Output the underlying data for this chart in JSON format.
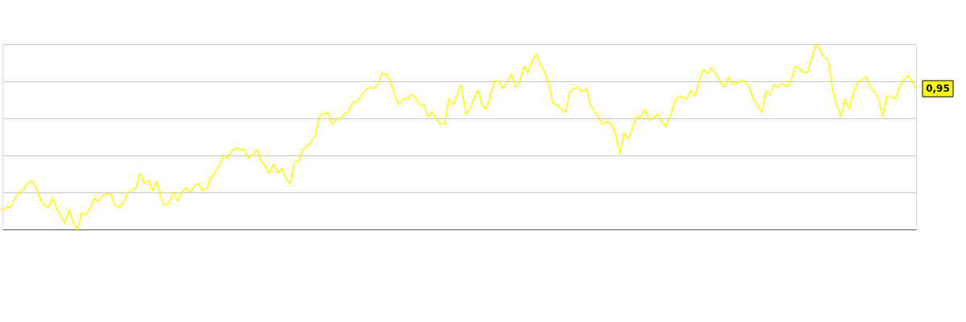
{
  "chart_data": {
    "type": "line",
    "ylim": [
      0,
      1.25
    ],
    "yticks": [
      {
        "value": 0,
        "label": null
      },
      {
        "value": 0.25,
        "label": null
      },
      {
        "value": 0.5,
        "label": null
      },
      {
        "value": 0.75,
        "label": null
      },
      {
        "value": 1,
        "label": null
      },
      {
        "value": 1.25,
        "label": null
      }
    ],
    "grid": "y",
    "tick_labels": false,
    "line_style": "solid",
    "marker": "none",
    "categories": [
      null,
      null,
      null,
      null,
      null,
      null,
      null,
      null,
      null,
      null,
      null,
      null,
      null,
      null,
      null,
      null,
      null,
      null,
      null,
      null,
      null,
      null,
      null,
      null,
      null,
      null,
      null,
      null,
      null,
      null,
      null,
      null,
      null,
      null,
      null,
      null,
      null,
      null,
      null,
      null,
      null,
      null,
      null,
      null,
      null,
      null,
      null,
      null,
      null,
      null,
      null,
      null,
      null,
      null,
      null,
      null,
      null,
      null,
      null,
      null,
      null,
      null,
      null,
      null,
      null,
      null,
      null,
      null,
      null,
      null,
      null,
      null,
      null,
      null,
      null,
      null,
      null,
      null,
      null,
      null,
      null,
      null,
      null,
      null,
      null,
      null,
      null,
      null,
      null,
      null,
      null,
      null,
      null,
      null,
      null,
      null,
      null,
      null,
      null,
      null,
      null,
      null,
      null,
      null,
      null,
      null,
      null,
      null,
      null,
      null,
      null,
      null,
      null,
      null,
      null,
      null,
      null,
      null,
      null,
      null,
      null,
      null,
      null,
      null,
      null,
      null,
      null,
      null,
      null,
      null,
      null,
      null,
      null,
      null,
      null,
      null,
      null,
      null,
      null,
      null,
      null,
      null,
      null,
      null,
      null,
      null,
      null,
      null,
      null,
      null,
      null,
      null,
      null,
      null,
      null,
      null,
      null,
      null,
      null,
      null,
      null,
      null,
      null,
      null,
      null,
      null,
      null,
      null,
      null,
      null,
      null,
      null,
      null,
      null,
      null,
      null,
      null,
      null,
      null,
      null,
      null,
      null,
      null,
      null,
      null,
      null,
      null,
      null,
      null,
      null,
      null,
      null,
      null,
      null,
      null,
      null,
      null,
      null,
      null,
      null,
      null,
      null,
      null,
      null,
      null,
      null,
      null,
      null,
      null,
      null,
      null,
      null,
      null,
      null,
      null,
      null,
      null,
      null,
      null,
      null
    ],
    "series": [
      {
        "color": "#ffff00",
        "values": [
          0.13,
          0.15,
          0.15,
          0.21,
          0.25,
          0.26,
          0.31,
          0.33,
          0.29,
          0.21,
          0.16,
          0.15,
          0.21,
          0.14,
          0.09,
          0.04,
          0.13,
          0.05,
          0,
          0.11,
          0.1,
          0.14,
          0.21,
          0.19,
          0.23,
          0.24,
          0.24,
          0.16,
          0.15,
          0.18,
          0.25,
          0.26,
          0.28,
          0.38,
          0.31,
          0.33,
          0.26,
          0.33,
          0.21,
          0.16,
          0.18,
          0.25,
          0.19,
          0.25,
          0.28,
          0.25,
          0.29,
          0.31,
          0.26,
          0.28,
          0.35,
          0.38,
          0.43,
          0.5,
          0.48,
          0.53,
          0.55,
          0.54,
          0.54,
          0.48,
          0.5,
          0.54,
          0.46,
          0.43,
          0.38,
          0.44,
          0.38,
          0.41,
          0.34,
          0.31,
          0.46,
          0.46,
          0.54,
          0.56,
          0.59,
          0.64,
          0.76,
          0.78,
          0.79,
          0.71,
          0.74,
          0.75,
          0.78,
          0.8,
          0.86,
          0.86,
          0.9,
          0.94,
          0.96,
          0.95,
          0.98,
          1.05,
          1.05,
          1.0,
          0.91,
          0.84,
          0.88,
          0.88,
          0.91,
          0.89,
          0.84,
          0.84,
          0.76,
          0.79,
          0.75,
          0.71,
          0.71,
          0.88,
          0.84,
          0.91,
          0.98,
          0.78,
          0.81,
          0.88,
          0.94,
          0.84,
          0.81,
          0.91,
          1.0,
          1.0,
          0.95,
          1.0,
          1.05,
          0.96,
          1.0,
          1.1,
          1.06,
          1.14,
          1.18,
          1.11,
          1.06,
          0.98,
          0.85,
          0.84,
          0.81,
          0.79,
          0.93,
          0.95,
          0.96,
          0.93,
          0.95,
          0.84,
          0.79,
          0.75,
          0.71,
          0.73,
          0.71,
          0.64,
          0.51,
          0.65,
          0.61,
          0.69,
          0.76,
          0.76,
          0.81,
          0.74,
          0.75,
          0.78,
          0.73,
          0.69,
          0.76,
          0.85,
          0.9,
          0.89,
          0.88,
          0.94,
          0.9,
          1.0,
          1.08,
          1.05,
          1.09,
          1.05,
          1.0,
          0.96,
          1.03,
          0.98,
          0.99,
          1.0,
          1.0,
          0.96,
          0.88,
          0.84,
          0.79,
          0.93,
          0.91,
          0.98,
          0.96,
          0.99,
          0.96,
          1.0,
          1.1,
          1.09,
          1.06,
          1.06,
          1.16,
          1.25,
          1.21,
          1.16,
          1.14,
          0.94,
          0.84,
          0.76,
          0.88,
          0.81,
          0.93,
          0.99,
          1.01,
          1.03,
          0.96,
          0.93,
          0.88,
          0.76,
          0.9,
          0.9,
          0.88,
          0.96,
          1.01,
          1.04,
          1.0,
          0.95
        ],
        "value_labels": [
          null,
          null,
          null,
          null,
          null,
          null,
          null,
          null,
          null,
          null,
          null,
          null,
          null,
          null,
          null,
          null,
          null,
          null,
          null,
          null,
          null,
          null,
          null,
          null,
          null,
          null,
          null,
          null,
          null,
          null,
          null,
          null,
          null,
          null,
          null,
          null,
          null,
          null,
          null,
          null,
          null,
          null,
          null,
          null,
          null,
          null,
          null,
          null,
          null,
          null,
          null,
          null,
          null,
          null,
          null,
          null,
          null,
          null,
          null,
          null,
          null,
          null,
          null,
          null,
          null,
          null,
          null,
          null,
          null,
          null,
          null,
          null,
          null,
          null,
          null,
          null,
          null,
          null,
          null,
          null,
          null,
          null,
          null,
          null,
          null,
          null,
          null,
          null,
          null,
          null,
          null,
          null,
          null,
          null,
          null,
          null,
          null,
          null,
          null,
          null,
          null,
          null,
          null,
          null,
          null,
          null,
          null,
          null,
          null,
          null,
          null,
          null,
          null,
          null,
          null,
          null,
          null,
          null,
          null,
          null,
          null,
          null,
          null,
          null,
          null,
          null,
          null,
          null,
          null,
          null,
          null,
          null,
          null,
          null,
          null,
          null,
          null,
          null,
          null,
          null,
          null,
          null,
          null,
          null,
          null,
          null,
          null,
          null,
          null,
          null,
          null,
          null,
          null,
          null,
          null,
          null,
          null,
          null,
          null,
          null,
          null,
          null,
          null,
          null,
          null,
          null,
          null,
          null,
          null,
          null,
          null,
          null,
          null,
          null,
          null,
          null,
          null,
          null,
          null,
          null,
          null,
          null,
          null,
          null,
          null,
          null,
          null,
          null,
          null,
          null,
          null,
          null,
          null,
          null,
          null,
          null,
          null,
          null,
          null,
          null,
          null,
          null,
          null,
          null,
          null,
          null,
          null,
          null,
          null,
          null,
          null,
          null,
          null,
          null,
          null,
          null,
          null,
          null,
          null,
          "0,95"
        ]
      }
    ]
  }
}
